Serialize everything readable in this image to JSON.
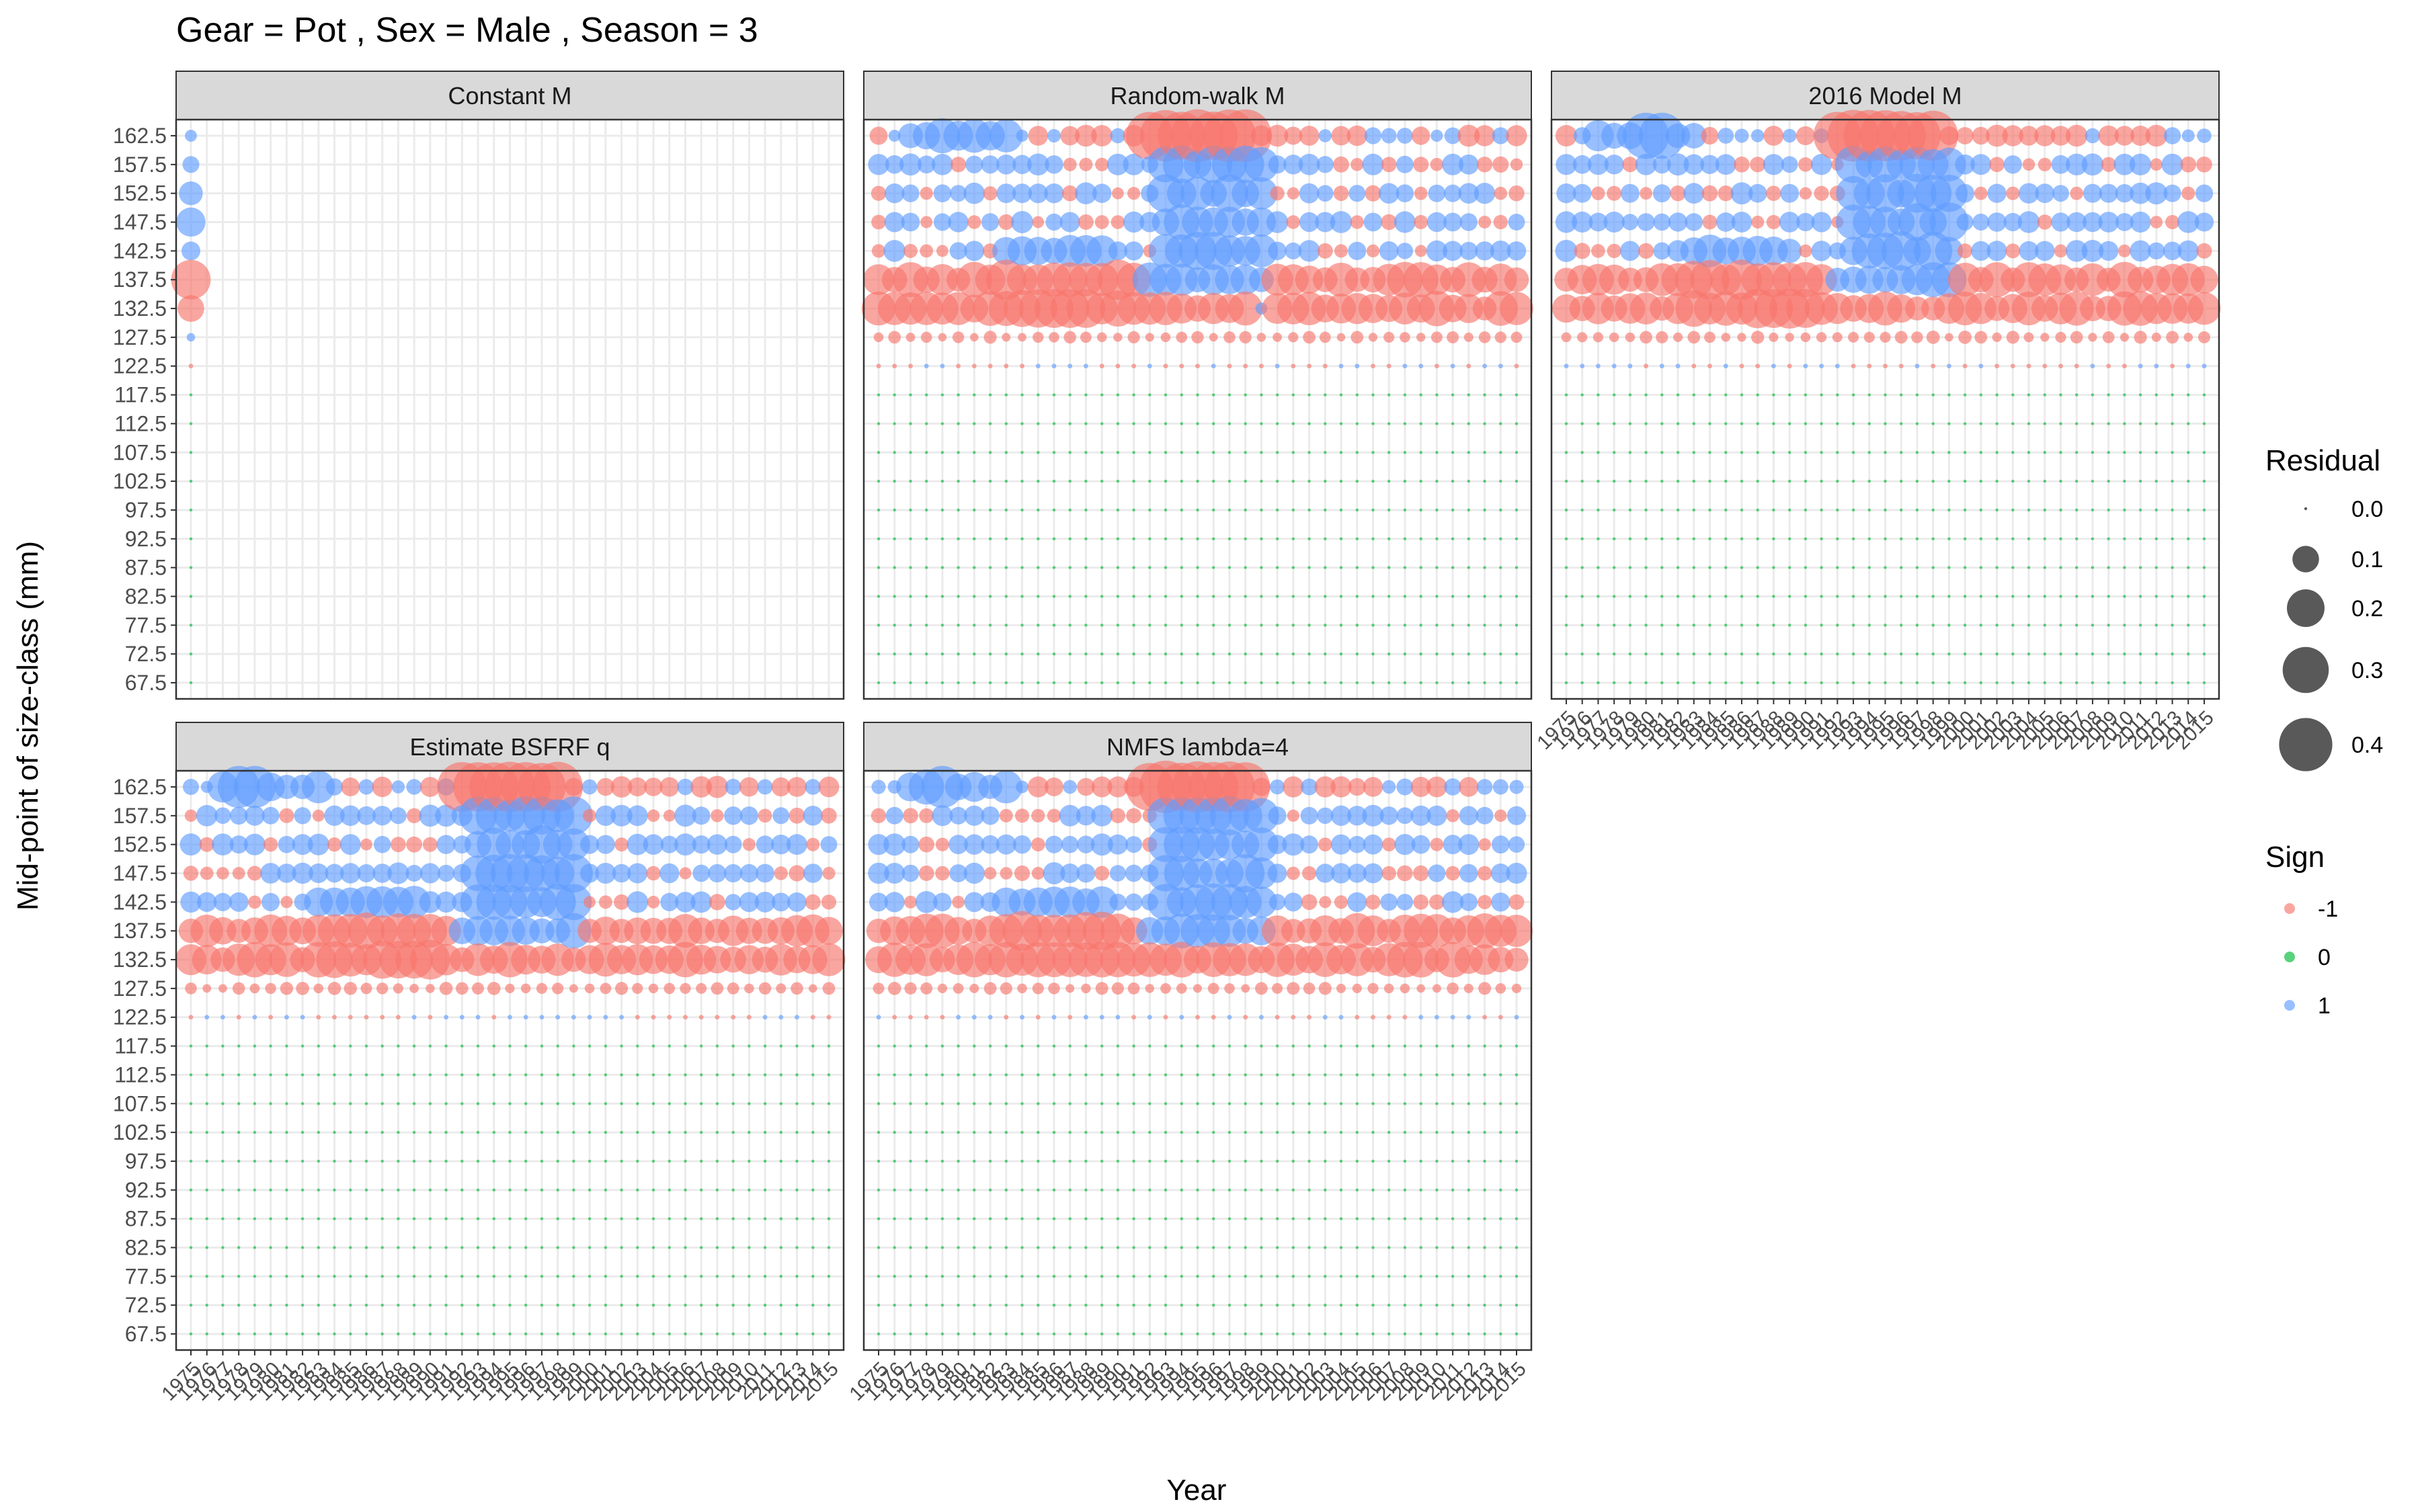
{
  "chart_data": {
    "type": "scatter",
    "title": "Gear = Pot , Sex = Male , Season = 3",
    "xlabel": "Year",
    "ylabel": "Mid-point of size-class (mm)",
    "years": [
      1975,
      1976,
      1977,
      1978,
      1979,
      1980,
      1981,
      1982,
      1983,
      1984,
      1985,
      1986,
      1987,
      1988,
      1989,
      1990,
      1991,
      1992,
      1993,
      1994,
      1995,
      1996,
      1997,
      1998,
      1999,
      2000,
      2001,
      2002,
      2003,
      2004,
      2005,
      2006,
      2007,
      2008,
      2009,
      2010,
      2011,
      2012,
      2013,
      2014,
      2015
    ],
    "size_classes": [
      162.5,
      157.5,
      152.5,
      147.5,
      142.5,
      137.5,
      132.5,
      127.5,
      122.5,
      117.5,
      112.5,
      107.5,
      102.5,
      97.5,
      92.5,
      87.5,
      82.5,
      77.5,
      72.5,
      67.5
    ],
    "panels": [
      {
        "name": "Constant M",
        "has_x_axis": false,
        "col_values": [
          {
            "year": 1975,
            "signed": [
              0.02,
              0.04,
              0.08,
              0.12,
              0.05,
              -0.22,
              -0.1,
              0.01,
              -0.003,
              0,
              0,
              0,
              0,
              0,
              0,
              0,
              0,
              0,
              0,
              0
            ]
          }
        ]
      },
      {
        "name": "Random-walk M",
        "has_x_axis": false,
        "anomalies": [
          {
            "year": 1999,
            "size_index": 6,
            "signed": 0.02
          }
        ]
      },
      {
        "name": "2016 Model M",
        "has_x_axis": true,
        "anomalies": [
          {
            "year": 1980,
            "size_index": 0,
            "signed": 0.3
          },
          {
            "year": 1981,
            "size_index": 0,
            "signed": 0.3
          }
        ]
      },
      {
        "name": "Estimate BSFRF q",
        "has_x_axis": true,
        "anomalies": [
          {
            "year": 1978,
            "size_index": 0,
            "signed": 0.25
          },
          {
            "year": 1979,
            "size_index": 0,
            "signed": 0.25
          }
        ]
      },
      {
        "name": "NMFS lambda=4",
        "has_x_axis": true,
        "anomalies": [
          {
            "year": 1979,
            "size_index": 0,
            "signed": 0.25
          }
        ]
      }
    ],
    "size_legend": {
      "title": "Residual",
      "values": [
        0.0,
        0.1,
        0.2,
        0.3,
        0.4
      ],
      "labels": [
        "0.0",
        "0.1",
        "0.2",
        "0.3",
        "0.4"
      ]
    },
    "color_legend": {
      "title": "Sign",
      "labels": [
        "-1",
        "0",
        "1"
      ],
      "colors": [
        "#F8766D",
        "#00BA38",
        "#619CFF"
      ]
    },
    "grid": true,
    "legend_position": "right"
  }
}
